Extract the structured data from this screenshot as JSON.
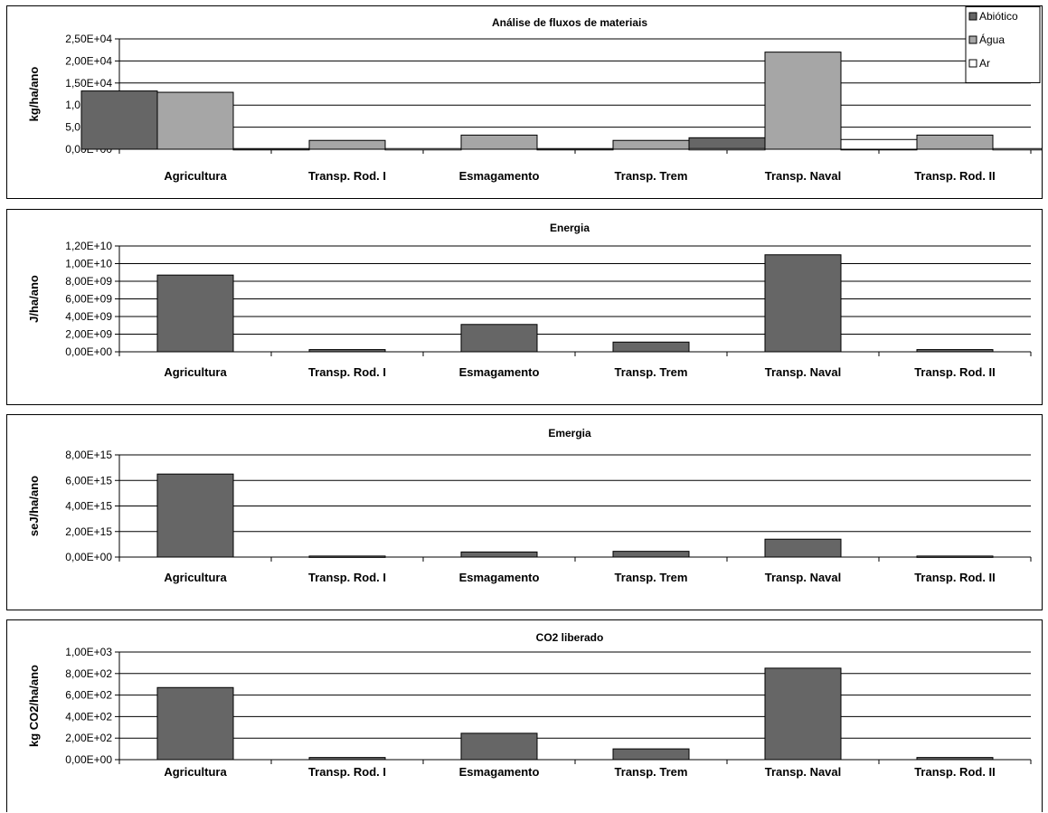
{
  "categories": [
    "Agricultura",
    "Transp. Rod. I",
    "Esmagamento",
    "Transp. Trem",
    "Transp. Naval",
    "Transp. Rod. II"
  ],
  "colors": {
    "abiotico": "#666666",
    "agua": "#a6a6a6",
    "ar": "#ffffff"
  },
  "chart_data": [
    {
      "type": "bar",
      "title": "Análise de fluxos de materiais",
      "ylabel": "kg/ha/ano",
      "categories": [
        "Agricultura",
        "Transp. Rod. I",
        "Esmagamento",
        "Transp. Trem",
        "Transp. Naval",
        "Transp. Rod. II"
      ],
      "yticks": [
        "0,00E+00",
        "5,00E+03",
        "1,00E+04",
        "1,50E+04",
        "2,00E+04",
        "2,50E+04"
      ],
      "ylim": [
        0,
        25000
      ],
      "legend": "top-right",
      "series": [
        {
          "name": "Abiótico",
          "color": "#666666",
          "values": [
            13200,
            150,
            0,
            150,
            2600,
            150
          ]
        },
        {
          "name": "Água",
          "color": "#a6a6a6",
          "values": [
            12900,
            2000,
            3200,
            2000,
            22000,
            3200
          ]
        },
        {
          "name": "Ar",
          "color": "#ffffff",
          "values": [
            0,
            150,
            0,
            150,
            2200,
            150
          ]
        }
      ]
    },
    {
      "type": "bar",
      "title": "Energia",
      "ylabel": "J/ha/ano",
      "categories": [
        "Agricultura",
        "Transp. Rod. I",
        "Esmagamento",
        "Transp. Trem",
        "Transp. Naval",
        "Transp. Rod. II"
      ],
      "yticks": [
        "0,00E+00",
        "2,00E+09",
        "4,00E+09",
        "6,00E+09",
        "8,00E+09",
        "1,00E+10",
        "1,20E+10"
      ],
      "ylim": [
        0,
        12000000000
      ],
      "series": [
        {
          "color": "#666666",
          "values": [
            8700000000,
            250000000,
            3100000000,
            1100000000,
            11000000000,
            250000000
          ]
        }
      ]
    },
    {
      "type": "bar",
      "title": "Emergia",
      "ylabel": "seJ/ha/ano",
      "categories": [
        "Agricultura",
        "Transp. Rod. I",
        "Esmagamento",
        "Transp. Trem",
        "Transp. Naval",
        "Transp. Rod. II"
      ],
      "yticks": [
        "0,00E+00",
        "2,00E+15",
        "4,00E+15",
        "6,00E+15",
        "8,00E+15"
      ],
      "ylim": [
        0,
        8000000000000000
      ],
      "series": [
        {
          "color": "#666666",
          "values": [
            6500000000000000,
            80000000000000,
            400000000000000,
            450000000000000,
            1400000000000000,
            80000000000000
          ]
        }
      ]
    },
    {
      "type": "bar",
      "title": "CO2 liberado",
      "ylabel": "kg CO2/ha/ano",
      "categories": [
        "Agricultura",
        "Transp. Rod. I",
        "Esmagamento",
        "Transp. Trem",
        "Transp. Naval",
        "Transp. Rod. II"
      ],
      "yticks": [
        "0,00E+00",
        "2,00E+02",
        "4,00E+02",
        "6,00E+02",
        "8,00E+02",
        "1,00E+03"
      ],
      "ylim": [
        0,
        1000
      ],
      "series": [
        {
          "color": "#666666",
          "values": [
            670,
            20,
            245,
            100,
            850,
            20
          ]
        }
      ]
    }
  ]
}
